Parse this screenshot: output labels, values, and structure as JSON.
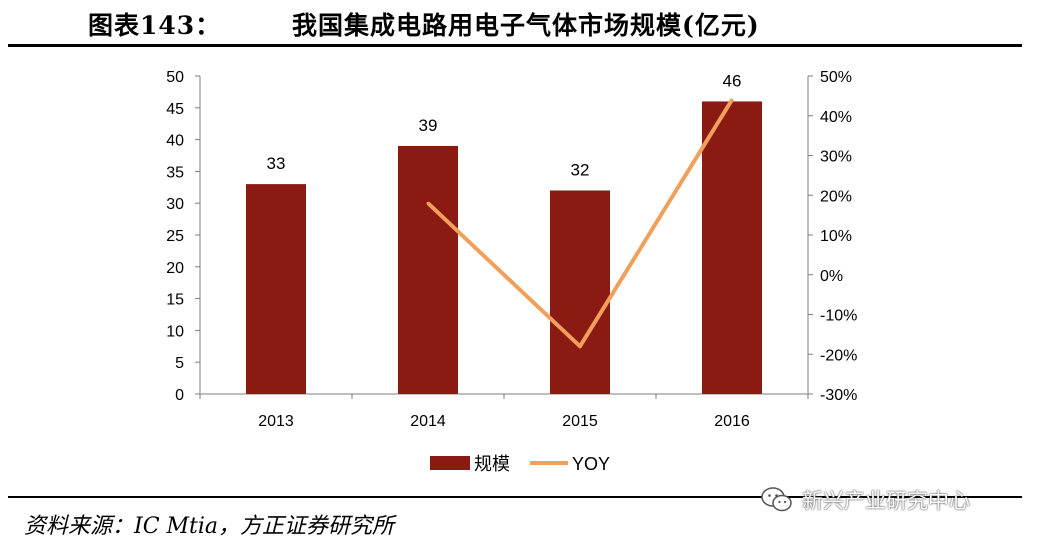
{
  "figure": {
    "label": "图表143：",
    "title": "我国集成电路用电子气体市场规模(亿元)"
  },
  "source": "资料来源：IC Mtia，方正证券研究所",
  "watermark": {
    "text": "新兴产业研究中心",
    "icon": "wechat-icon"
  },
  "colors": {
    "bar": "#8B1A12",
    "line": "#F0A05A",
    "axis": "#7f7f7f"
  },
  "chart_data": {
    "type": "bar",
    "categories": [
      "2013",
      "2014",
      "2015",
      "2016"
    ],
    "series": [
      {
        "name": "规模",
        "type": "bar",
        "axis": "left",
        "values": [
          33,
          39,
          32,
          46
        ],
        "labels": [
          "33",
          "39",
          "32",
          "46"
        ]
      },
      {
        "name": "YOY",
        "type": "line",
        "axis": "right",
        "values": [
          null,
          0.18,
          -0.18,
          0.44
        ]
      }
    ],
    "y_left": {
      "min": 0,
      "max": 50,
      "step": 5,
      "ticks": [
        "0",
        "5",
        "10",
        "15",
        "20",
        "25",
        "30",
        "35",
        "40",
        "45",
        "50"
      ]
    },
    "y_right": {
      "min": -0.3,
      "max": 0.5,
      "step": 0.1,
      "ticks": [
        "-30%",
        "-20%",
        "-10%",
        "0%",
        "10%",
        "20%",
        "30%",
        "40%",
        "50%"
      ]
    },
    "legend": {
      "position": "bottom",
      "items": [
        "规模",
        "YOY"
      ]
    },
    "grid": false
  }
}
